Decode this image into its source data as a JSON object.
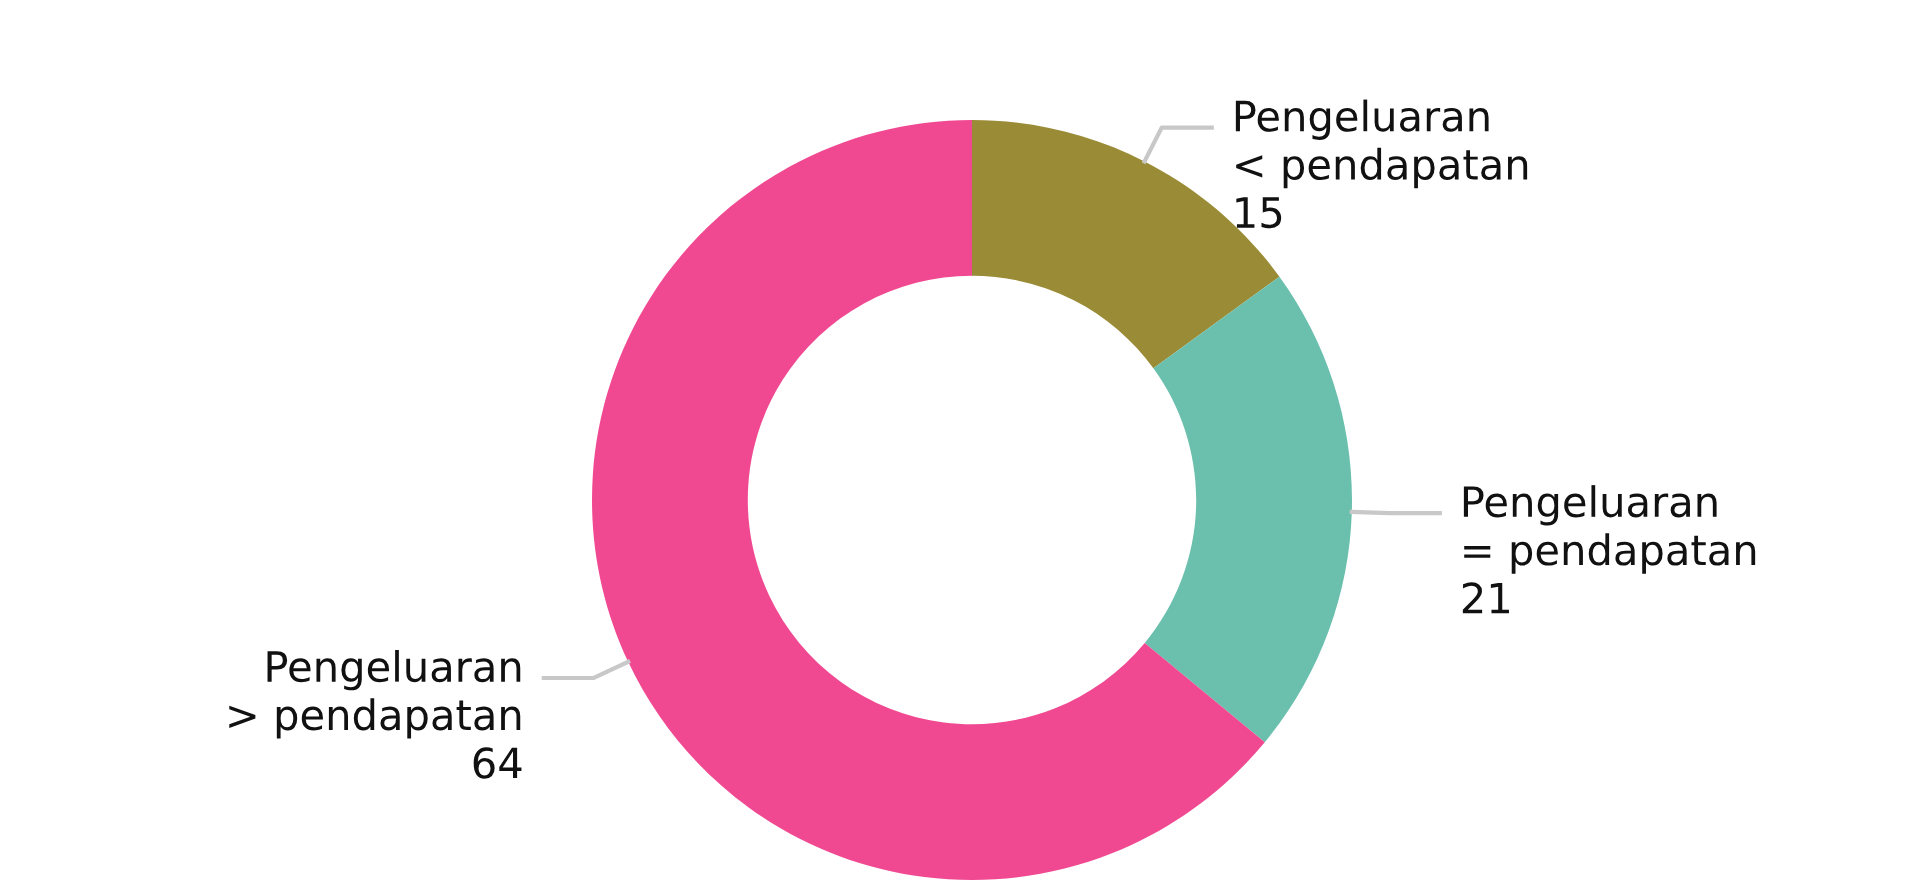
{
  "chart_data": {
    "type": "donut",
    "categories": [
      "Pengeluaran < pendapatan",
      "Pengeluaran = pendapatan",
      "Pengeluaran > pendapatan"
    ],
    "values": [
      15,
      21,
      64
    ],
    "colors": [
      "#9a8b36",
      "#6bbfad",
      "#f04992"
    ],
    "data_labels": true
  }
}
